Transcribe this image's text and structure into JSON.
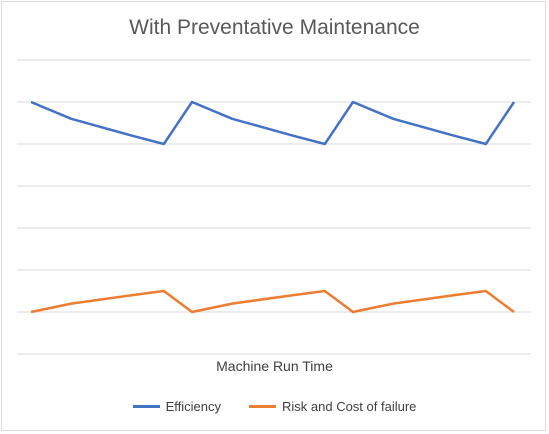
{
  "chart_data": {
    "type": "line",
    "title": "With Preventative Maintenance",
    "xlabel": "Machine Run Time",
    "ylabel": "",
    "x": [
      0,
      1,
      2,
      3,
      4,
      5,
      6,
      7,
      8,
      9,
      10,
      11,
      12
    ],
    "ylim": [
      0,
      7
    ],
    "gridlines": [
      0,
      1,
      2,
      3,
      4,
      5,
      6,
      7
    ],
    "grid": true,
    "legend_position": "bottom",
    "series": [
      {
        "name": "Efficiency",
        "color": "#4472C4",
        "values": [
          6,
          5.6,
          5.2,
          5.0,
          6,
          5.6,
          5.2,
          5.0,
          6,
          5.6,
          5.2,
          5.0,
          6
        ],
        "x": [
          0,
          1,
          2.5,
          3.3,
          4,
          5,
          6.5,
          7.3,
          8,
          9,
          10.5,
          11.3,
          12
        ]
      },
      {
        "name": "Risk and Cost of failure",
        "color": "#ED7D31",
        "values": [
          1.0,
          1.2,
          1.4,
          1.5,
          1.0,
          1.2,
          1.4,
          1.5,
          1.0,
          1.2,
          1.4,
          1.5,
          1.0
        ],
        "x": [
          0,
          1,
          2.5,
          3.3,
          4,
          5,
          6.5,
          7.3,
          8,
          9,
          10.5,
          11.3,
          12
        ]
      }
    ]
  }
}
